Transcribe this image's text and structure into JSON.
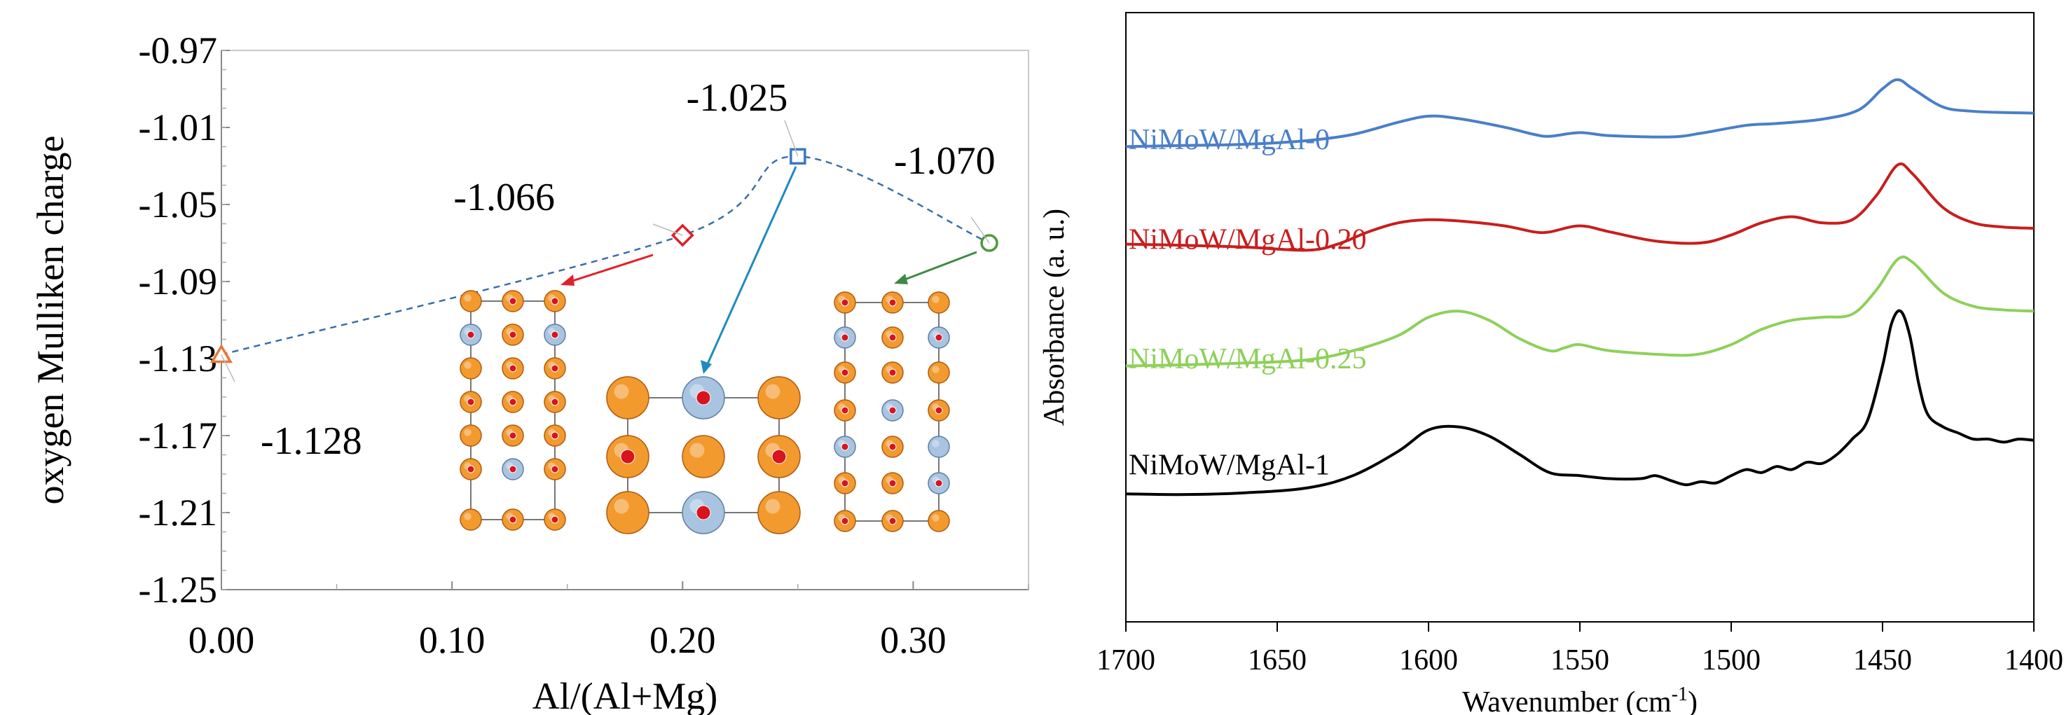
{
  "chart_data": [
    {
      "type": "scatter",
      "xlabel": "Al/(Al+Mg)",
      "ylabel": "oxygen Mulliken charge",
      "xlim": [
        0.0,
        0.35
      ],
      "ylim": [
        -1.25,
        -0.97
      ],
      "x_ticks": [
        "0.00",
        "0.10",
        "0.20",
        "0.30"
      ],
      "x_tick_values": [
        0.0,
        0.1,
        0.2,
        0.3
      ],
      "y_ticks": [
        "-0.97",
        "-1.01",
        "-1.05",
        "-1.09",
        "-1.13",
        "-1.17",
        "-1.21",
        "-1.25"
      ],
      "y_tick_values": [
        -0.97,
        -1.01,
        -1.05,
        -1.09,
        -1.13,
        -1.17,
        -1.21,
        -1.25
      ],
      "points": [
        {
          "x": 0.0,
          "y": -1.128,
          "label": "-1.128",
          "marker": "triangle",
          "color": "#E8763A"
        },
        {
          "x": 0.2,
          "y": -1.066,
          "label": "-1.066",
          "marker": "diamond",
          "color": "#E0202A"
        },
        {
          "x": 0.25,
          "y": -1.025,
          "label": "-1.025",
          "marker": "square",
          "color": "#3A78C2"
        },
        {
          "x": 0.333,
          "y": -1.07,
          "label": "-1.070",
          "marker": "circle",
          "color": "#4E9A3C"
        }
      ],
      "trend_line": {
        "style": "dashed",
        "color": "#3A6EA8"
      },
      "grid": false,
      "legend": "none"
    },
    {
      "type": "line",
      "xlabel_main": "Wavenumber (cm",
      "xlabel_sup": "-1",
      "xlabel_end": ")",
      "ylabel": "Absorbance (a. u.)",
      "xlim": [
        1700,
        1400
      ],
      "x_ticks": [
        "1700",
        "1650",
        "1600",
        "1550",
        "1500",
        "1450",
        "1400"
      ],
      "x_tick_values": [
        1700,
        1650,
        1600,
        1550,
        1500,
        1450,
        1400
      ],
      "grid": false,
      "legend": "inline labels",
      "series": [
        {
          "name": "NiMoW/MgAl-0",
          "color": "#4A7FC8",
          "x": [
            1700,
            1680,
            1660,
            1640,
            1625,
            1610,
            1600,
            1590,
            1575,
            1565,
            1560,
            1550,
            1540,
            1520,
            1510,
            1495,
            1485,
            1470,
            1458,
            1450,
            1445,
            1440,
            1430,
            1420,
            1410,
            1400
          ],
          "y": [
            0.78,
            0.782,
            0.784,
            0.79,
            0.8,
            0.82,
            0.83,
            0.826,
            0.812,
            0.8,
            0.797,
            0.803,
            0.798,
            0.796,
            0.802,
            0.815,
            0.818,
            0.825,
            0.84,
            0.875,
            0.89,
            0.875,
            0.845,
            0.838,
            0.836,
            0.835
          ]
        },
        {
          "name": "NiMoW/MgAl-0.20",
          "color": "#C81E1E",
          "x": [
            1700,
            1680,
            1660,
            1640,
            1630,
            1620,
            1610,
            1600,
            1590,
            1575,
            1565,
            1560,
            1550,
            1540,
            1525,
            1510,
            1500,
            1490,
            1480,
            1470,
            1460,
            1452,
            1445,
            1440,
            1430,
            1420,
            1410,
            1400
          ],
          "y": [
            0.62,
            0.618,
            0.615,
            0.61,
            0.62,
            0.64,
            0.655,
            0.66,
            0.658,
            0.65,
            0.64,
            0.64,
            0.65,
            0.64,
            0.625,
            0.622,
            0.635,
            0.655,
            0.665,
            0.655,
            0.66,
            0.7,
            0.75,
            0.735,
            0.68,
            0.655,
            0.648,
            0.646
          ]
        },
        {
          "name": "NiMoW/MgAl-0.25",
          "color": "#8ED05A",
          "x": [
            1700,
            1680,
            1660,
            1640,
            1625,
            1610,
            1600,
            1590,
            1580,
            1570,
            1560,
            1555,
            1550,
            1540,
            1520,
            1510,
            1500,
            1490,
            1480,
            1470,
            1460,
            1452,
            1445,
            1440,
            1430,
            1420,
            1410,
            1400
          ],
          "y": [
            0.42,
            0.422,
            0.425,
            0.43,
            0.445,
            0.47,
            0.5,
            0.51,
            0.495,
            0.465,
            0.445,
            0.45,
            0.455,
            0.445,
            0.438,
            0.44,
            0.455,
            0.48,
            0.495,
            0.5,
            0.505,
            0.545,
            0.595,
            0.59,
            0.54,
            0.518,
            0.512,
            0.51
          ]
        },
        {
          "name": "NiMoW/MgAl-1",
          "color": "#000000",
          "x": [
            1700,
            1680,
            1660,
            1640,
            1625,
            1610,
            1600,
            1590,
            1580,
            1570,
            1560,
            1550,
            1540,
            1530,
            1525,
            1520,
            1515,
            1510,
            1505,
            1500,
            1495,
            1490,
            1485,
            1480,
            1475,
            1470,
            1465,
            1460,
            1455,
            1450,
            1447,
            1444,
            1441,
            1438,
            1435,
            1430,
            1425,
            1420,
            1415,
            1410,
            1405,
            1400
          ],
          "y": [
            0.21,
            0.209,
            0.212,
            0.22,
            0.24,
            0.28,
            0.315,
            0.32,
            0.305,
            0.275,
            0.245,
            0.24,
            0.235,
            0.235,
            0.24,
            0.232,
            0.225,
            0.23,
            0.228,
            0.24,
            0.25,
            0.245,
            0.255,
            0.25,
            0.262,
            0.26,
            0.275,
            0.3,
            0.33,
            0.42,
            0.49,
            0.51,
            0.47,
            0.39,
            0.34,
            0.32,
            0.31,
            0.3,
            0.3,
            0.295,
            0.3,
            0.298
          ]
        }
      ]
    }
  ]
}
